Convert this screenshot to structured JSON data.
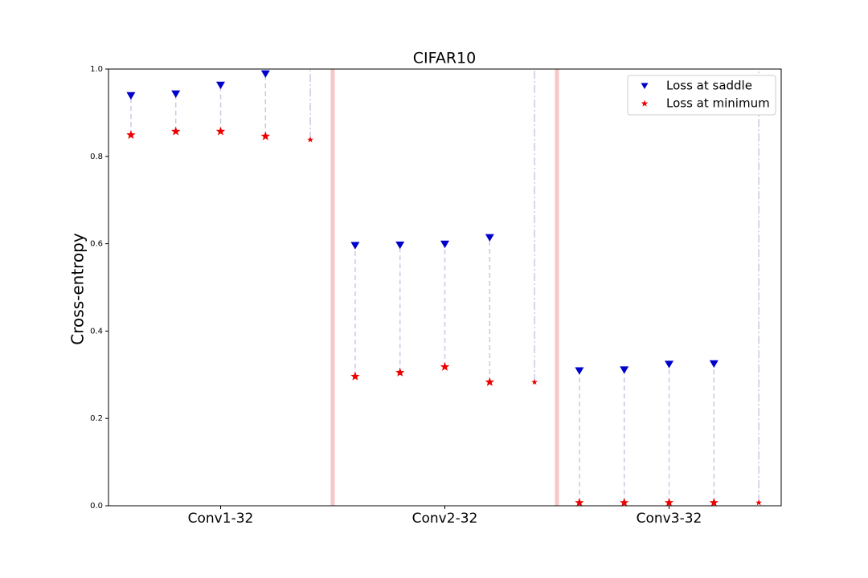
{
  "chart_data": {
    "type": "dot-range",
    "title": "CIFAR10",
    "y_label": "Cross-entropy",
    "x": [
      0,
      1,
      2,
      3,
      4,
      5,
      6,
      7,
      8,
      9,
      10,
      11,
      12,
      13,
      14
    ],
    "xlim": [
      -0.5,
      14.5
    ],
    "xticks": [
      {
        "value": 2,
        "label": "Conv1-32"
      },
      {
        "value": 7,
        "label": "Conv2-32"
      },
      {
        "value": 12,
        "label": "Conv3-32"
      }
    ],
    "separators": [
      4.5,
      9.5
    ],
    "separator_color": "#f7c6c6",
    "series": [
      {
        "name": "Loss at saddle",
        "color": "#0000cc",
        "values": [
          0.939,
          0.943,
          0.963,
          0.989,
          null,
          0.596,
          0.597,
          0.599,
          0.614,
          null,
          0.309,
          0.311,
          0.324,
          0.325,
          null
        ]
      },
      {
        "name": "Loss at minimum",
        "color": "#ee0000",
        "values": [
          0.849,
          0.857,
          0.857,
          0.846,
          0.838,
          0.296,
          0.305,
          0.318,
          0.283,
          0.283,
          0.007,
          0.007,
          0.007,
          0.007,
          0.007
        ]
      }
    ],
    "ylim": [
      0,
      1
    ],
    "yticks": [
      {
        "value": 0,
        "label": "0.0"
      },
      0.2,
      0.4,
      0.6,
      0.8,
      {
        "value": 1,
        "label": "1.0"
      }
    ],
    "legend": "upper right"
  }
}
